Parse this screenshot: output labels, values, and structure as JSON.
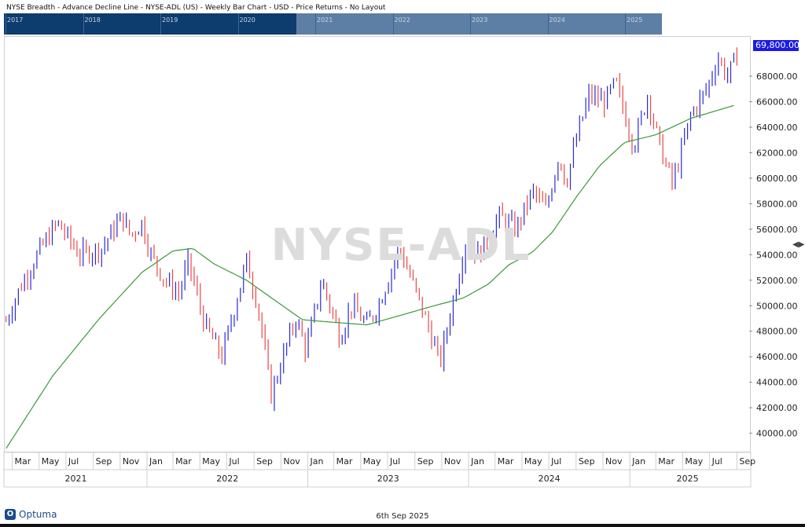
{
  "header": {
    "title": "NYSE Breadth - Advance Decline Line - NYSE-ADL (US) - Weekly Bar Chart - USD - Price Returns - No Layout"
  },
  "navigator": {
    "years": [
      "2017",
      "2018",
      "2019",
      "2020",
      "2021",
      "2022",
      "2023",
      "2024",
      "2025"
    ]
  },
  "watermark": "NYSE-ADL",
  "last_price_label": "69,800.00",
  "footer": {
    "logo": "Optuma",
    "date": "6th Sep 2025"
  },
  "colors": {
    "up_bar": "#2a2ad8",
    "down_bar": "#e84848",
    "moving_average": "#3a9a3a",
    "navigator_bg": "#0d3c6e",
    "price_badge": "#1a1ae6"
  },
  "chart_data": {
    "type": "ohlc",
    "title": "NYSE Breadth - Advance Decline Line - NYSE-ADL (US) - Weekly Bar Chart - USD - Price Returns - No Layout",
    "y_ticks": [
      "40000.00",
      "42000.00",
      "44000.00",
      "46000.00",
      "48000.00",
      "50000.00",
      "52000.00",
      "54000.00",
      "56000.00",
      "58000.00",
      "60000.00",
      "62000.00",
      "64000.00",
      "66000.00",
      "68000.00"
    ],
    "ylim": [
      38500,
      71200
    ],
    "x_month_ticks": [
      "Mar",
      "May",
      "Jul",
      "Sep",
      "Nov",
      "Jan",
      "Mar",
      "May",
      "Jul",
      "Sep",
      "Nov",
      "Jan",
      "Mar",
      "May",
      "Jul",
      "Sep",
      "Nov",
      "Jan",
      "Mar",
      "May",
      "Jul",
      "Sep",
      "Nov",
      "Jan",
      "Mar",
      "May",
      "Jul",
      "Sep"
    ],
    "x_year_labels": [
      "2021",
      "2022",
      "2023",
      "2024",
      "2025"
    ],
    "last_value": 69800,
    "close_anchors": [
      [
        "2021-02-15",
        48800
      ],
      [
        "2021-03-20",
        51500
      ],
      [
        "2021-05-05",
        54500
      ],
      [
        "2021-06-12",
        56500
      ],
      [
        "2021-08-01",
        54000
      ],
      [
        "2021-09-20",
        54500
      ],
      [
        "2021-11-05",
        57000
      ],
      [
        "2021-11-25",
        55500
      ],
      [
        "2021-12-20",
        56500
      ],
      [
        "2022-01-10",
        54000
      ],
      [
        "2022-02-10",
        52000
      ],
      [
        "2022-03-15",
        51000
      ],
      [
        "2022-04-05",
        53500
      ],
      [
        "2022-05-12",
        48500
      ],
      [
        "2022-06-20",
        46000
      ],
      [
        "2022-08-15",
        53500
      ],
      [
        "2022-09-10",
        50000
      ],
      [
        "2022-10-10",
        43000
      ],
      [
        "2022-11-10",
        46500
      ],
      [
        "2022-12-05",
        49000
      ],
      [
        "2022-12-28",
        46500
      ],
      [
        "2023-02-02",
        52000
      ],
      [
        "2023-03-15",
        47500
      ],
      [
        "2023-04-10",
        50000
      ],
      [
        "2023-05-15",
        48500
      ],
      [
        "2023-06-10",
        50000
      ],
      [
        "2023-07-28",
        54500
      ],
      [
        "2023-08-25",
        52000
      ],
      [
        "2023-10-05",
        48000
      ],
      [
        "2023-10-28",
        45500
      ],
      [
        "2023-11-15",
        48500
      ],
      [
        "2023-12-25",
        55000
      ],
      [
        "2024-01-25",
        54000
      ],
      [
        "2024-03-10",
        57000
      ],
      [
        "2024-04-18",
        56000
      ],
      [
        "2024-05-25",
        59000
      ],
      [
        "2024-06-25",
        57500
      ],
      [
        "2024-07-25",
        62000
      ],
      [
        "2024-08-08",
        59500
      ],
      [
        "2024-09-05",
        63500
      ],
      [
        "2024-09-30",
        66500
      ],
      [
        "2024-11-05",
        66000
      ],
      [
        "2024-11-30",
        67500
      ],
      [
        "2025-01-10",
        62500
      ],
      [
        "2025-02-10",
        66500
      ],
      [
        "2025-03-10",
        62500
      ],
      [
        "2025-04-08",
        59500
      ],
      [
        "2025-05-20",
        65000
      ],
      [
        "2025-06-25",
        67000
      ],
      [
        "2025-07-20",
        69500
      ],
      [
        "2025-08-10",
        68000
      ],
      [
        "2025-09-05",
        69800
      ]
    ],
    "moving_average_anchors": [
      [
        "2021-02-15",
        38800
      ],
      [
        "2021-06-01",
        44500
      ],
      [
        "2021-09-15",
        49000
      ],
      [
        "2021-12-20",
        52600
      ],
      [
        "2022-03-01",
        54300
      ],
      [
        "2022-04-15",
        54500
      ],
      [
        "2022-06-01",
        53300
      ],
      [
        "2022-08-15",
        52000
      ],
      [
        "2022-10-15",
        50500
      ],
      [
        "2022-12-20",
        48900
      ],
      [
        "2023-03-01",
        48700
      ],
      [
        "2023-05-15",
        48500
      ],
      [
        "2023-08-15",
        49400
      ],
      [
        "2023-10-15",
        50000
      ],
      [
        "2023-12-20",
        50600
      ],
      [
        "2024-02-15",
        51700
      ],
      [
        "2024-04-01",
        53200
      ],
      [
        "2024-05-25",
        54200
      ],
      [
        "2024-07-10",
        55800
      ],
      [
        "2024-09-01",
        58500
      ],
      [
        "2024-10-25",
        61000
      ],
      [
        "2024-12-20",
        62800
      ],
      [
        "2025-03-01",
        63400
      ],
      [
        "2025-05-20",
        64700
      ],
      [
        "2025-08-25",
        65700
      ]
    ]
  }
}
